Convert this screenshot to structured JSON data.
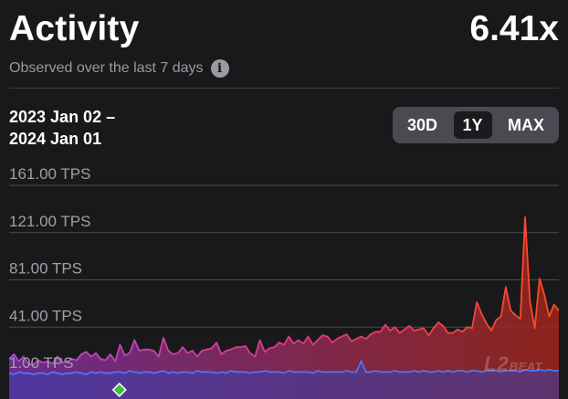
{
  "header": {
    "title": "Activity",
    "value": "6.41x",
    "subtitle": "Observed over the last 7 days",
    "info_icon": "info-icon"
  },
  "date_range": {
    "start": "2023 Jan 02 –",
    "end": "2024 Jan 01"
  },
  "range_selector": {
    "options": [
      "30D",
      "1Y",
      "MAX"
    ],
    "selected": "1Y"
  },
  "watermark": {
    "big": "L2",
    "small": "BEAT"
  },
  "colors": {
    "background": "#19191b",
    "primary_start": "#b04ad6",
    "primary_mid": "#e0397a",
    "primary_end": "#ff4a1e",
    "secondary_line": "#4f7bff",
    "marker": "#3fbf3f"
  },
  "chart_data": {
    "type": "area",
    "x_range": [
      "2023-01-02",
      "2024-01-01"
    ],
    "y_tick_labels": [
      "161.00 TPS",
      "121.00 TPS",
      "81.00 TPS",
      "41.00 TPS",
      "1.00 TPS"
    ],
    "y_ticks": [
      161,
      121,
      81,
      41,
      1
    ],
    "ylim": [
      1,
      161
    ],
    "grid": true,
    "series": [
      {
        "values": [
          14,
          18,
          12,
          16,
          10,
          9,
          13,
          11,
          12,
          10,
          16,
          11,
          12,
          14,
          13,
          18,
          20,
          16,
          19,
          14,
          13,
          18,
          12,
          26,
          17,
          19,
          30,
          21,
          22,
          22,
          21,
          16,
          32,
          21,
          18,
          19,
          24,
          19,
          21,
          16,
          21,
          22,
          23,
          28,
          18,
          21,
          22,
          24,
          24,
          25,
          19,
          16,
          30,
          20,
          23,
          24,
          28,
          26,
          33,
          27,
          30,
          27,
          33,
          26,
          30,
          34,
          33,
          28,
          31,
          33,
          35,
          29,
          31,
          33,
          31,
          35,
          37,
          37,
          43,
          38,
          41,
          36,
          39,
          42,
          38,
          39,
          40,
          34,
          40,
          45,
          42,
          36,
          36,
          39,
          37,
          41,
          40,
          62,
          52,
          44,
          38,
          47,
          50,
          75,
          55,
          51,
          48,
          134,
          63,
          40,
          82,
          68,
          50,
          60,
          55
        ]
      },
      {
        "values": [
          2,
          1,
          3,
          2,
          2,
          1,
          2,
          2,
          1,
          3,
          2,
          1,
          2,
          2,
          3,
          2,
          1,
          3,
          2,
          3,
          2,
          2,
          3,
          3,
          2,
          4,
          3,
          2,
          3,
          3,
          2,
          3,
          4,
          2,
          3,
          2,
          3,
          3,
          2,
          4,
          3,
          3,
          3,
          2,
          3,
          2,
          4,
          3,
          3,
          3,
          2,
          3,
          3,
          4,
          3,
          3,
          3,
          2,
          4,
          3,
          3,
          3,
          3,
          2,
          4,
          3,
          3,
          3,
          3,
          3,
          4,
          3,
          3,
          12,
          3,
          3,
          4,
          3,
          3,
          3,
          4,
          3,
          3,
          3,
          4,
          3,
          4,
          3,
          3,
          4,
          3,
          4,
          3,
          4,
          4,
          3,
          4,
          4,
          3,
          4,
          4,
          4,
          3,
          4,
          4,
          4,
          3,
          5,
          4,
          4,
          5,
          4,
          5,
          4,
          4
        ]
      }
    ],
    "marker": {
      "x": "2023-03-16",
      "shape": "diamond"
    }
  }
}
